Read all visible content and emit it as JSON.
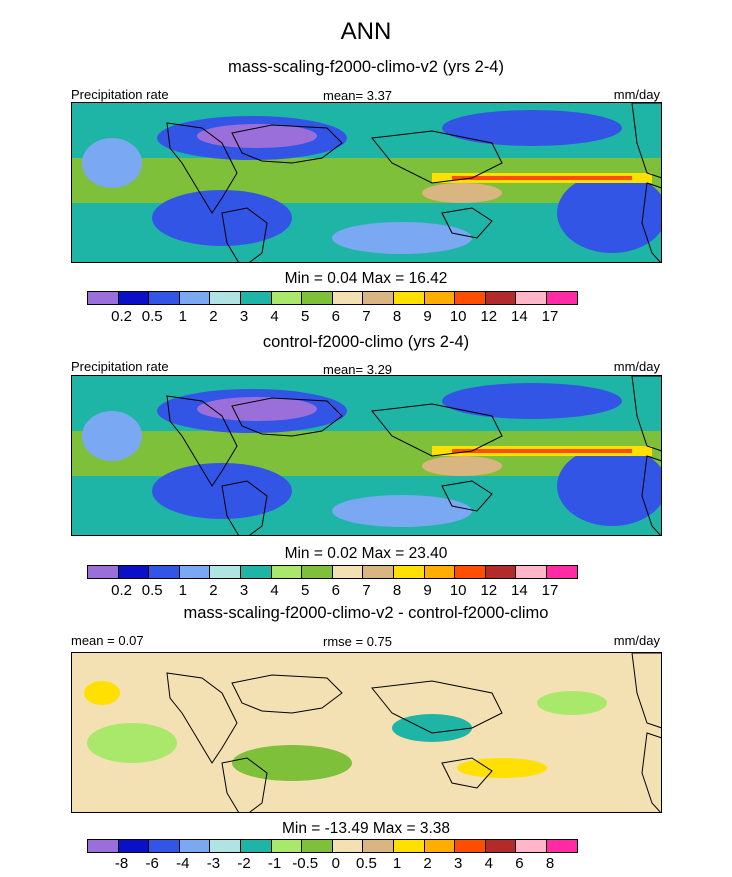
{
  "title": "ANN",
  "colors": {
    "prec": [
      "#9b6fd9",
      "#0a10c8",
      "#3355e6",
      "#7aa8f2",
      "#b2e3e3",
      "#1fb5a6",
      "#a9e86a",
      "#7ec03a",
      "#f3e1b3",
      "#d9b582",
      "#ffe000",
      "#ffad00",
      "#ff4e00",
      "#b32a2a",
      "#ffb6c8",
      "#ff2aa4"
    ],
    "diff": [
      "#9b6fd9",
      "#0a10c8",
      "#3355e6",
      "#7aa8f2",
      "#b2e3e3",
      "#1fb5a6",
      "#a9e86a",
      "#7ec03a",
      "#f3e1b3",
      "#d9b582",
      "#ffe000",
      "#ffad00",
      "#ff4e00",
      "#b32a2a",
      "#ffb6c8",
      "#ff2aa4"
    ]
  },
  "panels": [
    {
      "subtitle": "mass-scaling-f2000-climo-v2 (yrs 2-4)",
      "left_label": "Precipitation rate",
      "center_label": "mean=   3.37",
      "units": "mm/day",
      "minmax": "Min =   0.04 Max =  16.42",
      "field": "prec",
      "levels": [
        "0.2",
        "0.5",
        "1",
        "2",
        "3",
        "4",
        "5",
        "6",
        "7",
        "8",
        "9",
        "10",
        "12",
        "14",
        "17"
      ]
    },
    {
      "subtitle": "control-f2000-climo (yrs 2-4)",
      "left_label": "Precipitation rate",
      "center_label": "mean=   3.29",
      "units": "mm/day",
      "minmax": "Min =   0.02 Max =  23.40",
      "field": "prec",
      "levels": [
        "0.2",
        "0.5",
        "1",
        "2",
        "3",
        "4",
        "5",
        "6",
        "7",
        "8",
        "9",
        "10",
        "12",
        "14",
        "17"
      ]
    },
    {
      "subtitle": "mass-scaling-f2000-climo-v2 - control-f2000-climo",
      "left_label": "mean =   0.07",
      "center_label": "rmse =   0.75",
      "units": "mm/day",
      "minmax": "Min = -13.49 Max =   3.38",
      "field": "diff",
      "levels": [
        "-8",
        "-6",
        "-4",
        "-3",
        "-2",
        "-1",
        "-0.5",
        "0",
        "0.5",
        "1",
        "2",
        "3",
        "4",
        "6",
        "8"
      ]
    }
  ]
}
